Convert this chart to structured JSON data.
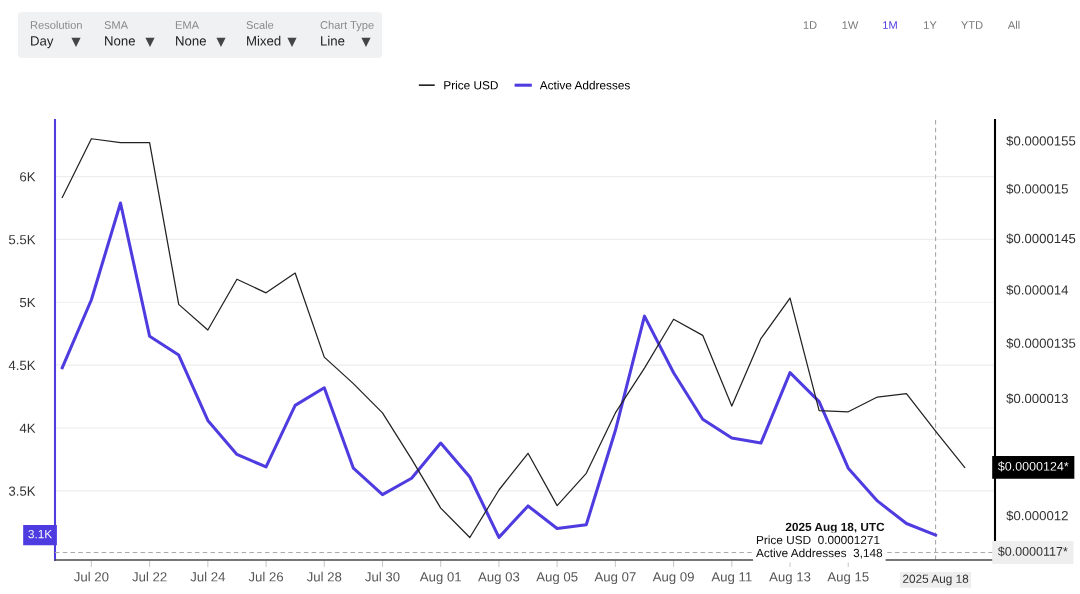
{
  "chart_data": {
    "type": "line",
    "x": [
      "2025-07-19",
      "2025-07-20",
      "2025-07-21",
      "2025-07-22",
      "2025-07-23",
      "2025-07-24",
      "2025-07-25",
      "2025-07-26",
      "2025-07-27",
      "2025-07-28",
      "2025-07-29",
      "2025-07-30",
      "2025-07-31",
      "2025-08-01",
      "2025-08-02",
      "2025-08-03",
      "2025-08-04",
      "2025-08-05",
      "2025-08-06",
      "2025-08-07",
      "2025-08-08",
      "2025-08-09",
      "2025-08-10",
      "2025-08-11",
      "2025-08-12",
      "2025-08-13",
      "2025-08-14",
      "2025-08-15",
      "2025-08-16",
      "2025-08-17",
      "2025-08-18",
      "2025-08-19"
    ],
    "series": [
      {
        "name": "Price USD",
        "color": "#222222",
        "axis": "y2",
        "values": [
          1.491e-05,
          1.552e-05,
          1.548e-05,
          1.548e-05,
          1.386e-05,
          1.362e-05,
          1.41e-05,
          1.397e-05,
          1.416e-05,
          1.337e-05,
          1.313e-05,
          1.287e-05,
          1.247e-05,
          1.206e-05,
          1.182e-05,
          1.221e-05,
          1.252e-05,
          1.208e-05,
          1.235e-05,
          1.287e-05,
          1.327e-05,
          1.372e-05,
          1.357e-05,
          1.293e-05,
          1.354e-05,
          1.392e-05,
          1.289e-05,
          1.288e-05,
          1.301e-05,
          1.304e-05,
          1.271e-05,
          1.24e-05
        ]
      },
      {
        "name": "Active Addresses",
        "color": "#4f3ce0",
        "values": [
          4480,
          5020,
          5790,
          4730,
          4580,
          4060,
          3790,
          3690,
          4180,
          4320,
          3680,
          3470,
          3600,
          3880,
          3610,
          3130,
          3380,
          3200,
          3230,
          3980,
          4890,
          4440,
          4070,
          3920,
          3880,
          4440,
          4210,
          3680,
          3420,
          3240,
          3148,
          null
        ]
      }
    ],
    "ylim": [
      2950,
      6450
    ],
    "yticks": [
      {
        "value": 3500,
        "label": "3.5K"
      },
      {
        "value": 4000,
        "label": "4K"
      },
      {
        "value": 4500,
        "label": "4.5K"
      },
      {
        "value": 5000,
        "label": "5K"
      },
      {
        "value": 5500,
        "label": "5.5K"
      },
      {
        "value": 6000,
        "label": "6K"
      }
    ],
    "log": "y2",
    "y2lim": [
      1.164e-05,
      1.572e-05
    ],
    "y2ticks": [
      {
        "value": 1.2e-05,
        "label": "$0.000012"
      },
      {
        "value": 1.3e-05,
        "label": "$0.000013"
      },
      {
        "value": 1.35e-05,
        "label": "$0.0000135"
      },
      {
        "value": 1.4e-05,
        "label": "$0.000014"
      },
      {
        "value": 1.45e-05,
        "label": "$0.0000145"
      },
      {
        "value": 1.5e-05,
        "label": "$0.000015"
      },
      {
        "value": 1.55e-05,
        "label": "$0.0000155"
      }
    ],
    "xlim": [
      "2025-07-18T18:00",
      "2025-08-20T01:00"
    ],
    "xticks": [
      {
        "value": "2025-07-20",
        "label": "Jul 20"
      },
      {
        "value": "2025-07-22",
        "label": "Jul 22"
      },
      {
        "value": "2025-07-24",
        "label": "Jul 24"
      },
      {
        "value": "2025-07-26",
        "label": "Jul 26"
      },
      {
        "value": "2025-07-28",
        "label": "Jul 28"
      },
      {
        "value": "2025-07-30",
        "label": "Jul 30"
      },
      {
        "value": "2025-08-01",
        "label": "Aug 01"
      },
      {
        "value": "2025-08-03",
        "label": "Aug 03"
      },
      {
        "value": "2025-08-05",
        "label": "Aug 05"
      },
      {
        "value": "2025-08-07",
        "label": "Aug 07"
      },
      {
        "value": "2025-08-09",
        "label": "Aug 09"
      },
      {
        "value": "2025-08-11",
        "label": "Aug 11"
      },
      {
        "value": "2025-08-13",
        "label": "Aug 13"
      },
      {
        "value": "2025-08-15",
        "label": "Aug 15"
      }
    ],
    "ref_lines": [
      {
        "axis": "y2",
        "value": 1.17e-05,
        "label": "$0.0000117*",
        "color": "#aaaaaa",
        "line_style": "dashed"
      },
      {
        "axis": "x",
        "value": "2025-08-18",
        "label": "2025 Aug 18",
        "color": "#aaaaaa",
        "line_style": "dashed"
      }
    ],
    "annotations": [
      "Resolution",
      "Day",
      "SMA",
      "None",
      "EMA",
      "None",
      "Scale",
      "Mixed",
      "Chart Type",
      "Line",
      "1D",
      "1W",
      "1M",
      "1Y",
      "YTD",
      "All",
      "2025 Aug 18, UTC",
      "Price USD  0.00001271",
      "Active Addresses  3,148",
      "$0.0000124*",
      "3.1K"
    ],
    "grid": "y",
    "legend": "top",
    "line_style": "solid"
  }
}
